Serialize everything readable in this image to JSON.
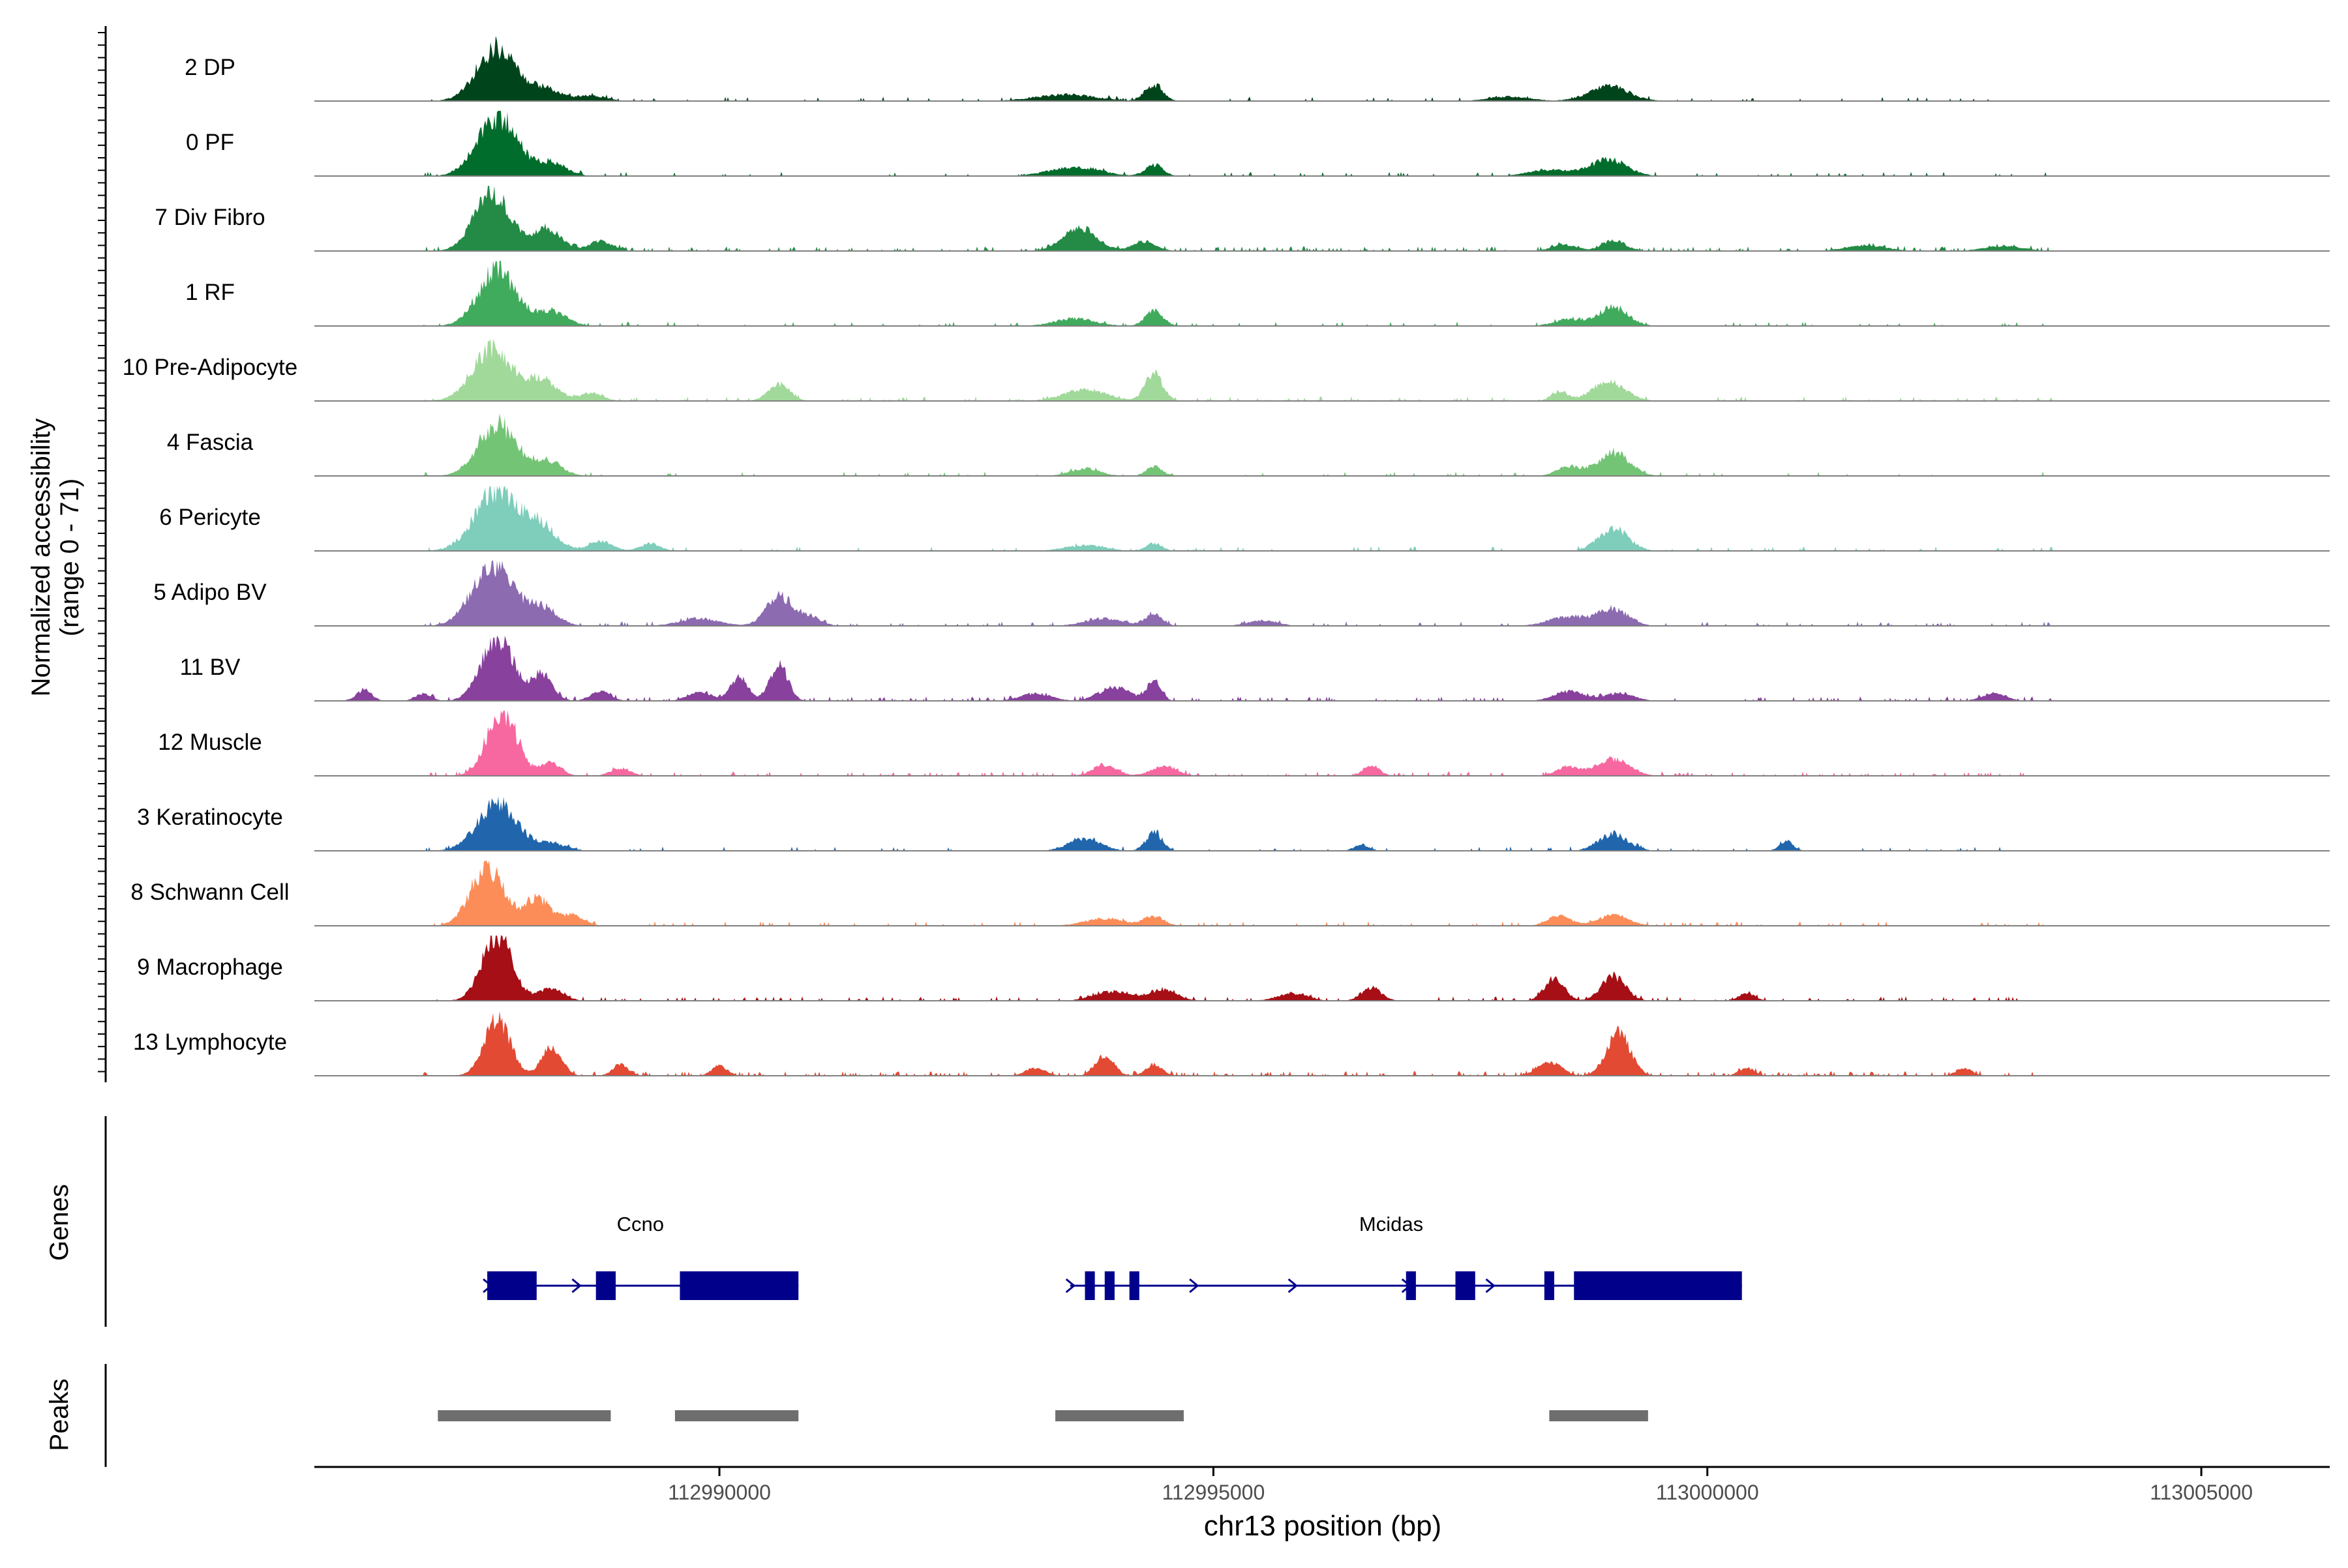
{
  "chart_data": {
    "type": "coverage",
    "genome": "chr13",
    "xlabel": "chr13 position (bp)",
    "ylabel": [
      "Normalized accessibility",
      "(range 0 - 71)"
    ],
    "ymax": 71,
    "xlim": [
      112985900,
      113006300
    ],
    "xticks": [
      {
        "value": 112990000,
        "label": "112990000"
      },
      {
        "value": 112995000,
        "label": "112995000"
      },
      {
        "value": 113000000,
        "label": "113000000"
      },
      {
        "value": 113005000,
        "label": "113005000"
      }
    ],
    "tracks": [
      {
        "name": "2 DP",
        "color": "#00441b",
        "noise": 0.06,
        "seed": 3,
        "peaks": [
          [
            112987750,
            58,
            200
          ],
          [
            112988250,
            12,
            150
          ],
          [
            112988700,
            6,
            150
          ],
          [
            112993500,
            7,
            300
          ],
          [
            112994400,
            18,
            90
          ],
          [
            112998000,
            5,
            200
          ],
          [
            112999000,
            16,
            200
          ]
        ]
      },
      {
        "name": "0 PF",
        "color": "#006d2c",
        "noise": 0.06,
        "seed": 7,
        "peaks": [
          [
            112987750,
            64,
            200
          ],
          [
            112988300,
            14,
            150
          ],
          [
            112993600,
            10,
            250
          ],
          [
            112994400,
            12,
            90
          ],
          [
            112998400,
            7,
            200
          ],
          [
            112999000,
            18,
            180
          ]
        ]
      },
      {
        "name": "7 Div Fibro",
        "color": "#238b45",
        "noise": 0.18,
        "seed": 11,
        "peaks": [
          [
            112987700,
            62,
            180
          ],
          [
            112988250,
            24,
            140
          ],
          [
            112988800,
            10,
            120
          ],
          [
            112993650,
            24,
            170
          ],
          [
            112994300,
            10,
            120
          ],
          [
            112998550,
            7,
            120
          ],
          [
            112999050,
            11,
            120
          ],
          [
            113001600,
            6,
            200
          ],
          [
            113003000,
            5,
            200
          ]
        ]
      },
      {
        "name": "1 RF",
        "color": "#41ab5d",
        "noise": 0.06,
        "seed": 13,
        "peaks": [
          [
            112987750,
            60,
            190
          ],
          [
            112988300,
            16,
            150
          ],
          [
            112993600,
            8,
            200
          ],
          [
            112994400,
            16,
            90
          ],
          [
            112998600,
            7,
            150
          ],
          [
            112999050,
            20,
            150
          ]
        ]
      },
      {
        "name": "10 Pre-Adipocyte",
        "color": "#a1d99b",
        "noise": 0.12,
        "seed": 17,
        "peaks": [
          [
            112987700,
            55,
            200
          ],
          [
            112988200,
            22,
            150
          ],
          [
            112988700,
            8,
            120
          ],
          [
            112990600,
            18,
            110
          ],
          [
            112993700,
            12,
            220
          ],
          [
            112994400,
            28,
            90
          ],
          [
            112998500,
            10,
            80
          ],
          [
            112999000,
            20,
            170
          ]
        ]
      },
      {
        "name": "4 Fascia",
        "color": "#74c476",
        "noise": 0.06,
        "seed": 19,
        "peaks": [
          [
            112987750,
            56,
            190
          ],
          [
            112988250,
            16,
            150
          ],
          [
            112993700,
            8,
            150
          ],
          [
            112994400,
            10,
            80
          ],
          [
            112998600,
            10,
            120
          ],
          [
            112999050,
            26,
            160
          ]
        ]
      },
      {
        "name": "6 Pericyte",
        "color": "#7fcdbb",
        "noise": 0.07,
        "seed": 23,
        "peaks": [
          [
            112987750,
            65,
            220
          ],
          [
            112988200,
            24,
            160
          ],
          [
            112988800,
            10,
            120
          ],
          [
            112989300,
            8,
            100
          ],
          [
            112993700,
            6,
            200
          ],
          [
            112994400,
            8,
            80
          ],
          [
            112999050,
            24,
            150
          ]
        ]
      },
      {
        "name": "5 Adipo BV",
        "color": "#8c6bb1",
        "noise": 0.09,
        "seed": 29,
        "peaks": [
          [
            112987700,
            68,
            200
          ],
          [
            112988200,
            20,
            150
          ],
          [
            112989800,
            8,
            200
          ],
          [
            112990600,
            32,
            130
          ],
          [
            112990900,
            10,
            120
          ],
          [
            112993900,
            8,
            200
          ],
          [
            112994400,
            14,
            80
          ],
          [
            112995500,
            6,
            150
          ],
          [
            112998600,
            10,
            200
          ],
          [
            112999050,
            18,
            150
          ]
        ]
      },
      {
        "name": "11 BV",
        "color": "#88419d",
        "noise": 0.15,
        "seed": 31,
        "peaks": [
          [
            112986400,
            12,
            80
          ],
          [
            112987000,
            8,
            80
          ],
          [
            112987750,
            68,
            160
          ],
          [
            112988200,
            28,
            110
          ],
          [
            112988800,
            10,
            100
          ],
          [
            112989800,
            10,
            120
          ],
          [
            112990200,
            24,
            90
          ],
          [
            112990600,
            40,
            90
          ],
          [
            112993200,
            8,
            150
          ],
          [
            112994000,
            14,
            160
          ],
          [
            112994400,
            22,
            70
          ],
          [
            112998600,
            10,
            150
          ],
          [
            112999100,
            8,
            150
          ],
          [
            113002900,
            8,
            120
          ]
        ]
      },
      {
        "name": "12 Muscle",
        "color": "#f768a1",
        "noise": 0.12,
        "seed": 37,
        "peaks": [
          [
            112987800,
            71,
            150
          ],
          [
            112988300,
            14,
            100
          ],
          [
            112989000,
            8,
            100
          ],
          [
            112993900,
            12,
            120
          ],
          [
            112994500,
            10,
            130
          ],
          [
            112996600,
            12,
            80
          ],
          [
            112998600,
            10,
            120
          ],
          [
            112999050,
            18,
            160
          ]
        ]
      },
      {
        "name": "3 Keratinocyte",
        "color": "#2166ac",
        "noise": 0.07,
        "seed": 41,
        "peaks": [
          [
            112987750,
            50,
            200
          ],
          [
            112988300,
            8,
            150
          ],
          [
            112993700,
            14,
            160
          ],
          [
            112994400,
            20,
            80
          ],
          [
            112996500,
            6,
            80
          ],
          [
            112999050,
            18,
            150
          ],
          [
            113000800,
            10,
            70
          ]
        ]
      },
      {
        "name": "8 Schwann Cell",
        "color": "#fc8d59",
        "noise": 0.09,
        "seed": 43,
        "peaks": [
          [
            112987650,
            62,
            170
          ],
          [
            112988150,
            30,
            120
          ],
          [
            112988500,
            12,
            120
          ],
          [
            112993900,
            8,
            200
          ],
          [
            112994400,
            10,
            100
          ],
          [
            112998500,
            10,
            120
          ],
          [
            112999050,
            12,
            150
          ]
        ]
      },
      {
        "name": "9 Macrophage",
        "color": "#a50f15",
        "noise": 0.12,
        "seed": 47,
        "peaks": [
          [
            112987750,
            71,
            150
          ],
          [
            112988300,
            14,
            120
          ],
          [
            112994000,
            10,
            200
          ],
          [
            112994500,
            12,
            130
          ],
          [
            112995800,
            8,
            150
          ],
          [
            112996600,
            14,
            100
          ],
          [
            112998450,
            24,
            100
          ],
          [
            112999050,
            26,
            120
          ],
          [
            113000400,
            8,
            80
          ]
        ]
      },
      {
        "name": "13 Lymphocyte",
        "color": "#e34a33",
        "noise": 0.2,
        "seed": 53,
        "peaks": [
          [
            112987750,
            60,
            130
          ],
          [
            112988300,
            30,
            100
          ],
          [
            112989000,
            12,
            80
          ],
          [
            112990000,
            10,
            80
          ],
          [
            112993200,
            8,
            100
          ],
          [
            112993900,
            22,
            90
          ],
          [
            112994400,
            12,
            80
          ],
          [
            112998400,
            14,
            120
          ],
          [
            112999100,
            44,
            120
          ],
          [
            113000400,
            8,
            80
          ],
          [
            113002600,
            8,
            80
          ]
        ]
      }
    ],
    "genes": [
      {
        "name": "Ccno",
        "start": 112987650,
        "end": 112990800,
        "label_pos": 112989200,
        "exons": [
          [
            112987650,
            112988150
          ],
          [
            112988750,
            112988950
          ],
          [
            112989600,
            112990800
          ]
        ],
        "arrows": [
          112987650,
          112988550
        ]
      },
      {
        "name": "Mcidas",
        "start": 112993550,
        "end": 113000350,
        "label_pos": 112996800,
        "exons": [
          [
            112993700,
            112993800
          ],
          [
            112993900,
            112994000
          ],
          [
            112994150,
            112994250
          ],
          [
            112996950,
            112997050
          ],
          [
            112997450,
            112997650
          ],
          [
            112998350,
            112998450
          ],
          [
            112998650,
            113000350
          ]
        ],
        "arrows": [
          112993550,
          112994800,
          112995800,
          112996950,
          112997800
        ]
      }
    ],
    "peaks_track": [
      [
        112987150,
        112988900
      ],
      [
        112989550,
        112990800
      ],
      [
        112993400,
        112994700
      ],
      [
        112998400,
        112999400
      ]
    ],
    "panels": {
      "genes_label": "Genes",
      "peaks_label": "Peaks"
    }
  }
}
